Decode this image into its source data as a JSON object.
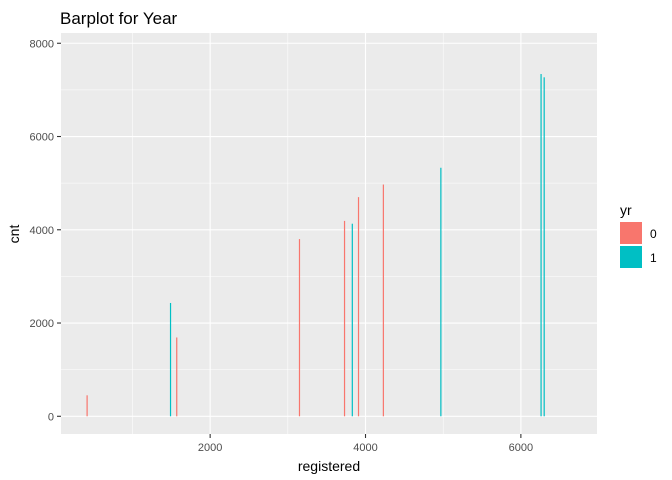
{
  "chart_data": {
    "type": "bar",
    "title": "Barplot for Year",
    "xlabel": "registered",
    "ylabel": "cnt",
    "xlim": [
      80,
      6980
    ],
    "ylim": [
      -380,
      8220
    ],
    "x_ticks": [
      2000,
      4000,
      6000
    ],
    "x_tick_labels": [
      "2000",
      "4000",
      "6000"
    ],
    "y_ticks": [
      0,
      2000,
      4000,
      6000,
      8000
    ],
    "y_tick_labels": [
      "0",
      "2000",
      "4000",
      "6000",
      "8000"
    ],
    "grid": true,
    "legend": {
      "title": "yr",
      "placement": "right"
    },
    "series": [
      {
        "name": "0",
        "color": "#F8766D",
        "x": [
          416,
          1570,
          3150,
          3730,
          3910,
          4230
        ],
        "values": [
          450,
          1690,
          3800,
          4190,
          4700,
          4970
        ]
      },
      {
        "name": "1",
        "color": "#00BFC4",
        "x": [
          1490,
          3830,
          4970,
          6260,
          6300
        ],
        "values": [
          2430,
          4130,
          5330,
          7340,
          7270
        ]
      }
    ]
  }
}
